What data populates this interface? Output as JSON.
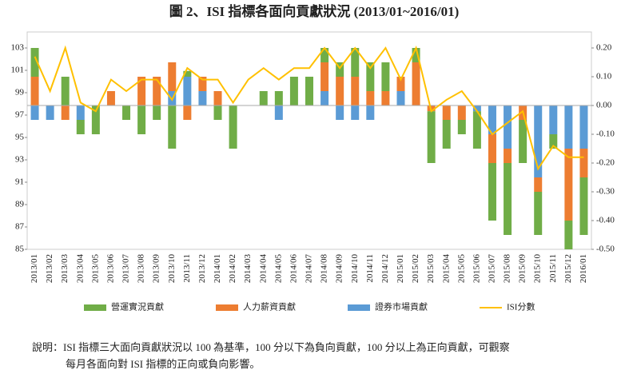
{
  "chart_data": {
    "type": "bar",
    "title": "圖 2、ISI 指標各面向貢獻狀況 (2013/01~2016/01)",
    "categories": [
      "2013/01",
      "2013/02",
      "2013/03",
      "2013/04",
      "2013/05",
      "2013/06",
      "2013/07",
      "2013/08",
      "2013/09",
      "2013/10",
      "2013/11",
      "2013/12",
      "2014/01",
      "2014/02",
      "2014/03",
      "2014/04",
      "2014/05",
      "2014/06",
      "2014/07",
      "2014/08",
      "2014/09",
      "2014/10",
      "2014/11",
      "2014/12",
      "2015/01",
      "2015/02",
      "2015/03",
      "2015/04",
      "2015/05",
      "2015/06",
      "2015/07",
      "2015/08",
      "2015/09",
      "2015/10",
      "2015/11",
      "2015/12",
      "2016/01"
    ],
    "series": [
      {
        "name": "營運實況貢獻",
        "type": "bar",
        "axis": "y2",
        "color": "#70ad47",
        "values": [
          0.1,
          0,
          0.1,
          -0.05,
          -0.1,
          0,
          -0.05,
          -0.1,
          -0.05,
          -0.15,
          0.02,
          0,
          -0.05,
          -0.15,
          0,
          0.05,
          0.05,
          0.1,
          0.1,
          0.05,
          0.05,
          0.1,
          0.1,
          0.1,
          0,
          0.05,
          -0.18,
          -0.1,
          -0.05,
          -0.13,
          -0.2,
          -0.25,
          -0.15,
          -0.15,
          -0.05,
          -0.1,
          -0.2
        ]
      },
      {
        "name": "人力薪資貢獻",
        "type": "bar",
        "axis": "y2",
        "color": "#ed7d31",
        "values": [
          0.1,
          0,
          -0.05,
          0,
          0,
          0.05,
          0,
          0.1,
          0.1,
          0.1,
          -0.05,
          0.05,
          0.05,
          0,
          0,
          0,
          0,
          0,
          0,
          0.1,
          0.1,
          0.1,
          0.05,
          0.05,
          0.05,
          0.15,
          -0.02,
          -0.05,
          -0.05,
          0,
          -0.1,
          -0.05,
          -0.05,
          -0.05,
          0,
          -0.25,
          -0.1
        ]
      },
      {
        "name": "證券市場貢獻",
        "type": "bar",
        "axis": "y2",
        "color": "#5b9bd5",
        "values": [
          -0.05,
          -0.05,
          0,
          -0.05,
          0,
          0,
          0,
          0,
          0,
          0.05,
          0.1,
          0.05,
          0,
          0,
          0,
          0,
          -0.05,
          0,
          0,
          0.05,
          -0.05,
          -0.05,
          -0.05,
          0,
          0.05,
          0,
          0,
          0,
          0,
          -0.02,
          -0.1,
          -0.15,
          0,
          -0.25,
          -0.1,
          -0.15,
          -0.15
        ]
      },
      {
        "name": "ISI分數",
        "type": "line",
        "axis": "y2",
        "color": "#ffc000",
        "values": [
          0.17,
          0.05,
          0.2,
          0.01,
          -0.02,
          0.09,
          0.05,
          0.09,
          0.09,
          0.02,
          0.13,
          0.09,
          0.09,
          0.01,
          0.09,
          0.13,
          0.09,
          0.13,
          0.13,
          0.2,
          0.13,
          0.2,
          0.13,
          0.2,
          0.09,
          0.2,
          -0.02,
          0.02,
          0.05,
          -0.02,
          -0.1,
          -0.06,
          -0.02,
          -0.22,
          -0.14,
          -0.18,
          -0.18
        ]
      }
    ],
    "ylim": [
      85,
      103
    ],
    "yticks": [
      85,
      87,
      89,
      91,
      93,
      95,
      97,
      99,
      101,
      103
    ],
    "y2lim": [
      -0.5,
      0.2
    ],
    "y2ticks": [
      {
        "value": -0.5,
        "label": "-0.50"
      },
      {
        "value": -0.4,
        "label": "-0.40"
      },
      {
        "value": -0.3,
        "label": "-0.30"
      },
      {
        "value": -0.2,
        "label": "-0.20"
      },
      {
        "value": -0.1,
        "label": "-0.10"
      },
      {
        "value": 0,
        "label": "0.00"
      },
      {
        "value": 0.1,
        "label": "0.10"
      },
      {
        "value": 0.2,
        "label": "0.20"
      }
    ],
    "notes": [
      "說明：ISI 指標三大面向貢獻狀況以 100 為基準，100 分以下為負向貢獻，100 分以上為正向貢獻，可觀察",
      "每月各面向對 ISI 指標的正向或負向影響。"
    ]
  }
}
